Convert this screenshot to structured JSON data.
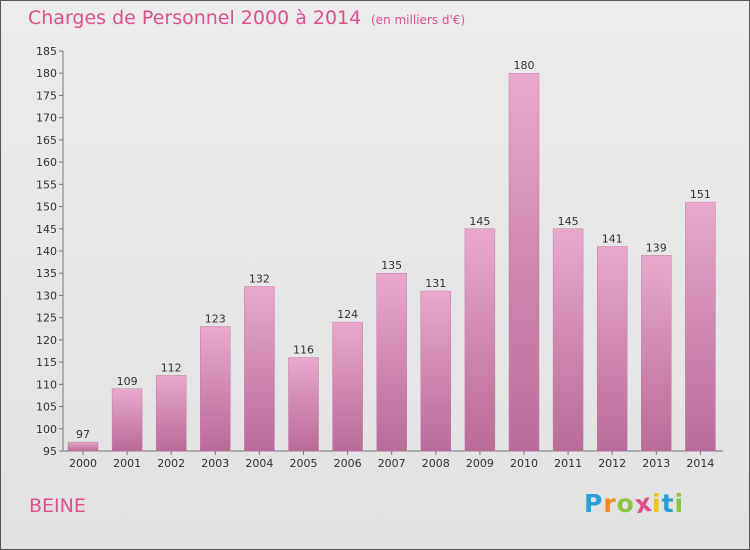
{
  "title": "Charges de Personnel 2000 à 2014",
  "subtitle": "(en milliers d'€)",
  "commune": "BEINE",
  "logo": {
    "letters": [
      "P",
      "r",
      "o",
      "x",
      "i",
      "t",
      "i"
    ],
    "colors": [
      "#2aa0d8",
      "#f08a1e",
      "#8cc63f",
      "#e0508a",
      "#f0c419",
      "#2aa0d8",
      "#8cc63f"
    ]
  },
  "colors": {
    "accent": "#e0508a",
    "bar_top": "#e8a9cc",
    "bar_bottom": "#b96a98"
  },
  "chart_data": {
    "type": "bar",
    "title": "Charges de Personnel 2000 à 2014",
    "subtitle": "(en milliers d'€)",
    "categories": [
      "2000",
      "2001",
      "2002",
      "2003",
      "2004",
      "2005",
      "2006",
      "2007",
      "2008",
      "2009",
      "2010",
      "2011",
      "2012",
      "2013",
      "2014"
    ],
    "values": [
      97,
      109,
      112,
      123,
      132,
      116,
      124,
      135,
      131,
      145,
      180,
      145,
      141,
      139,
      151
    ],
    "ylim": [
      95,
      185
    ],
    "yticks": [
      95,
      100,
      105,
      110,
      115,
      120,
      125,
      130,
      135,
      140,
      145,
      150,
      155,
      160,
      165,
      170,
      175,
      180,
      185
    ],
    "grid": false
  }
}
